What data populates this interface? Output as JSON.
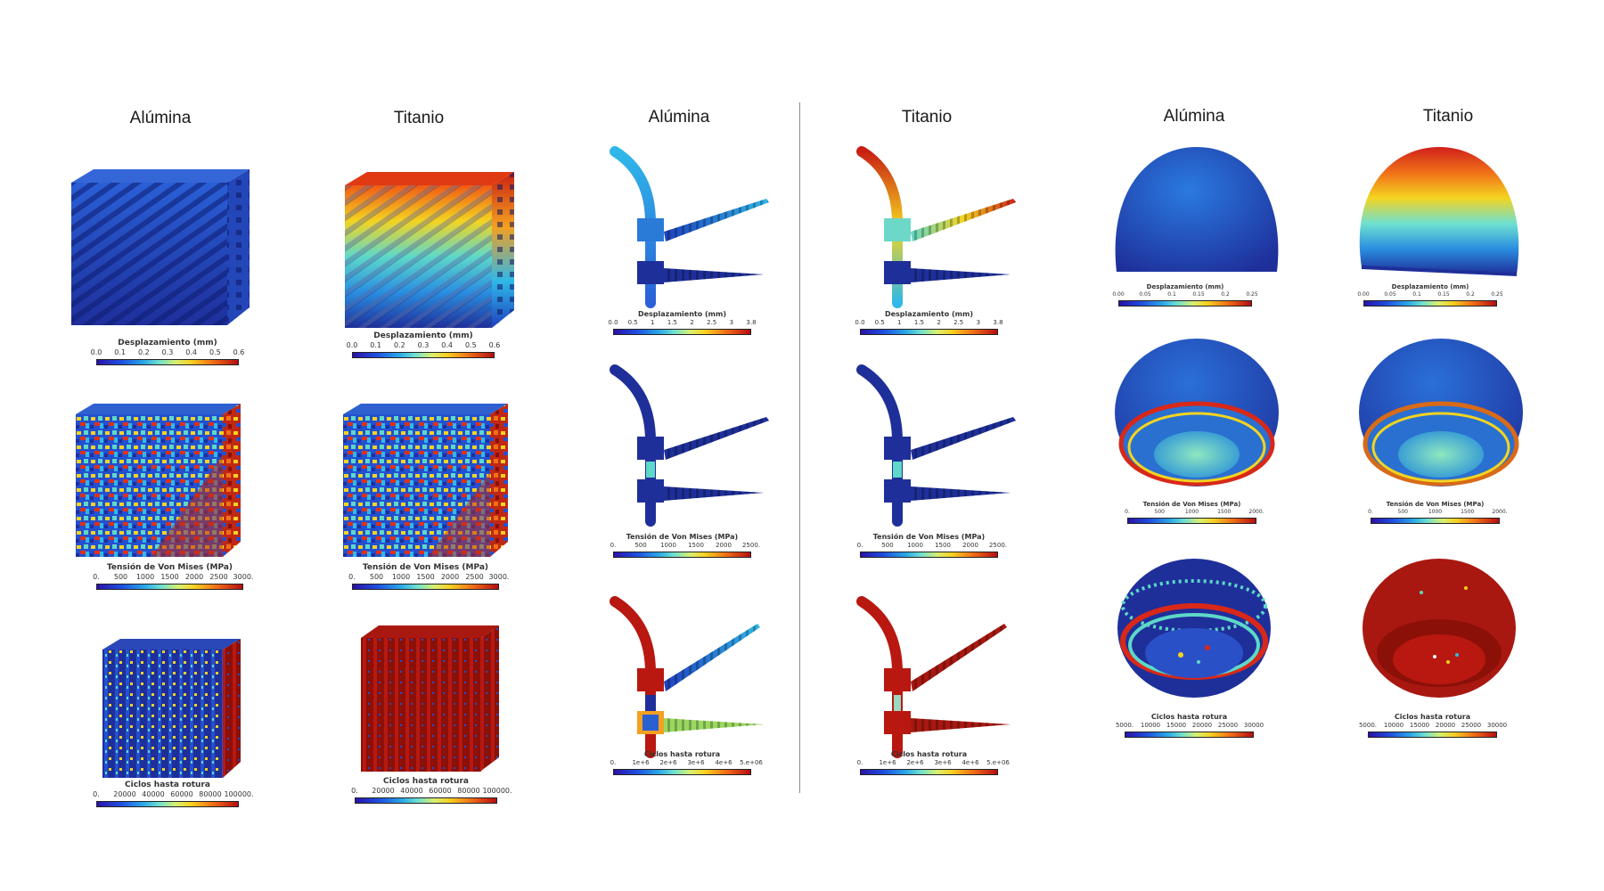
{
  "headers": [
    "Alúmina",
    "Titanio",
    "Alúmina",
    "Titanio",
    "Alúmina",
    "Titanio"
  ],
  "legends": {
    "lattice_disp": {
      "title": "Desplazamiento (mm)",
      "ticks": [
        "0.0",
        "0.1",
        "0.2",
        "0.3",
        "0.4",
        "0.5",
        "0.6"
      ]
    },
    "lattice_vm": {
      "title": "Tensión de Von Mises (MPa)",
      "ticks": [
        "0.",
        "500",
        "1000",
        "1500",
        "2000",
        "2500",
        "3000."
      ]
    },
    "lattice_cycles": {
      "title": "Ciclos hasta rotura",
      "ticks": [
        "0.",
        "20000",
        "40000",
        "60000",
        "80000",
        "100000."
      ]
    },
    "plate_disp": {
      "title": "Desplazamiento (mm)",
      "ticks": [
        "0.0",
        "0.5",
        "1",
        "1.5",
        "2",
        "2.5",
        "3",
        "3.8"
      ]
    },
    "plate_vm": {
      "title": "Tensión de Von Mises (MPa)",
      "ticks": [
        "0.",
        "500",
        "1000",
        "1500",
        "2000",
        "2500."
      ]
    },
    "plate_cycles": {
      "title": "Ciclos hasta rotura",
      "ticks": [
        "0.",
        "1e+6",
        "2e+6",
        "3e+6",
        "4e+6",
        "5.e+06"
      ]
    },
    "cup_disp": {
      "title": "Desplazamiento (mm)",
      "ticks": [
        "0.00",
        "0.05",
        "0.1",
        "0.15",
        "0.2",
        "0.25"
      ]
    },
    "cup_vm": {
      "title": "Tensión de Von Mises (MPa)",
      "ticks": [
        "0.",
        "500",
        "1000",
        "1500",
        "2000."
      ]
    },
    "cup_cycles": {
      "title": "Ciclos hasta rotura",
      "ticks": [
        "5000.",
        "10000",
        "15000",
        "20000",
        "25000",
        "30000"
      ]
    }
  },
  "colors": {
    "deep_blue": "#1e2f9a",
    "blue": "#1f55d8",
    "cyan": "#2fb8e8",
    "teal": "#5ed8c8",
    "yellow": "#f4d420",
    "orange": "#f07018",
    "red": "#b81810",
    "dark_red": "#8a1008"
  }
}
